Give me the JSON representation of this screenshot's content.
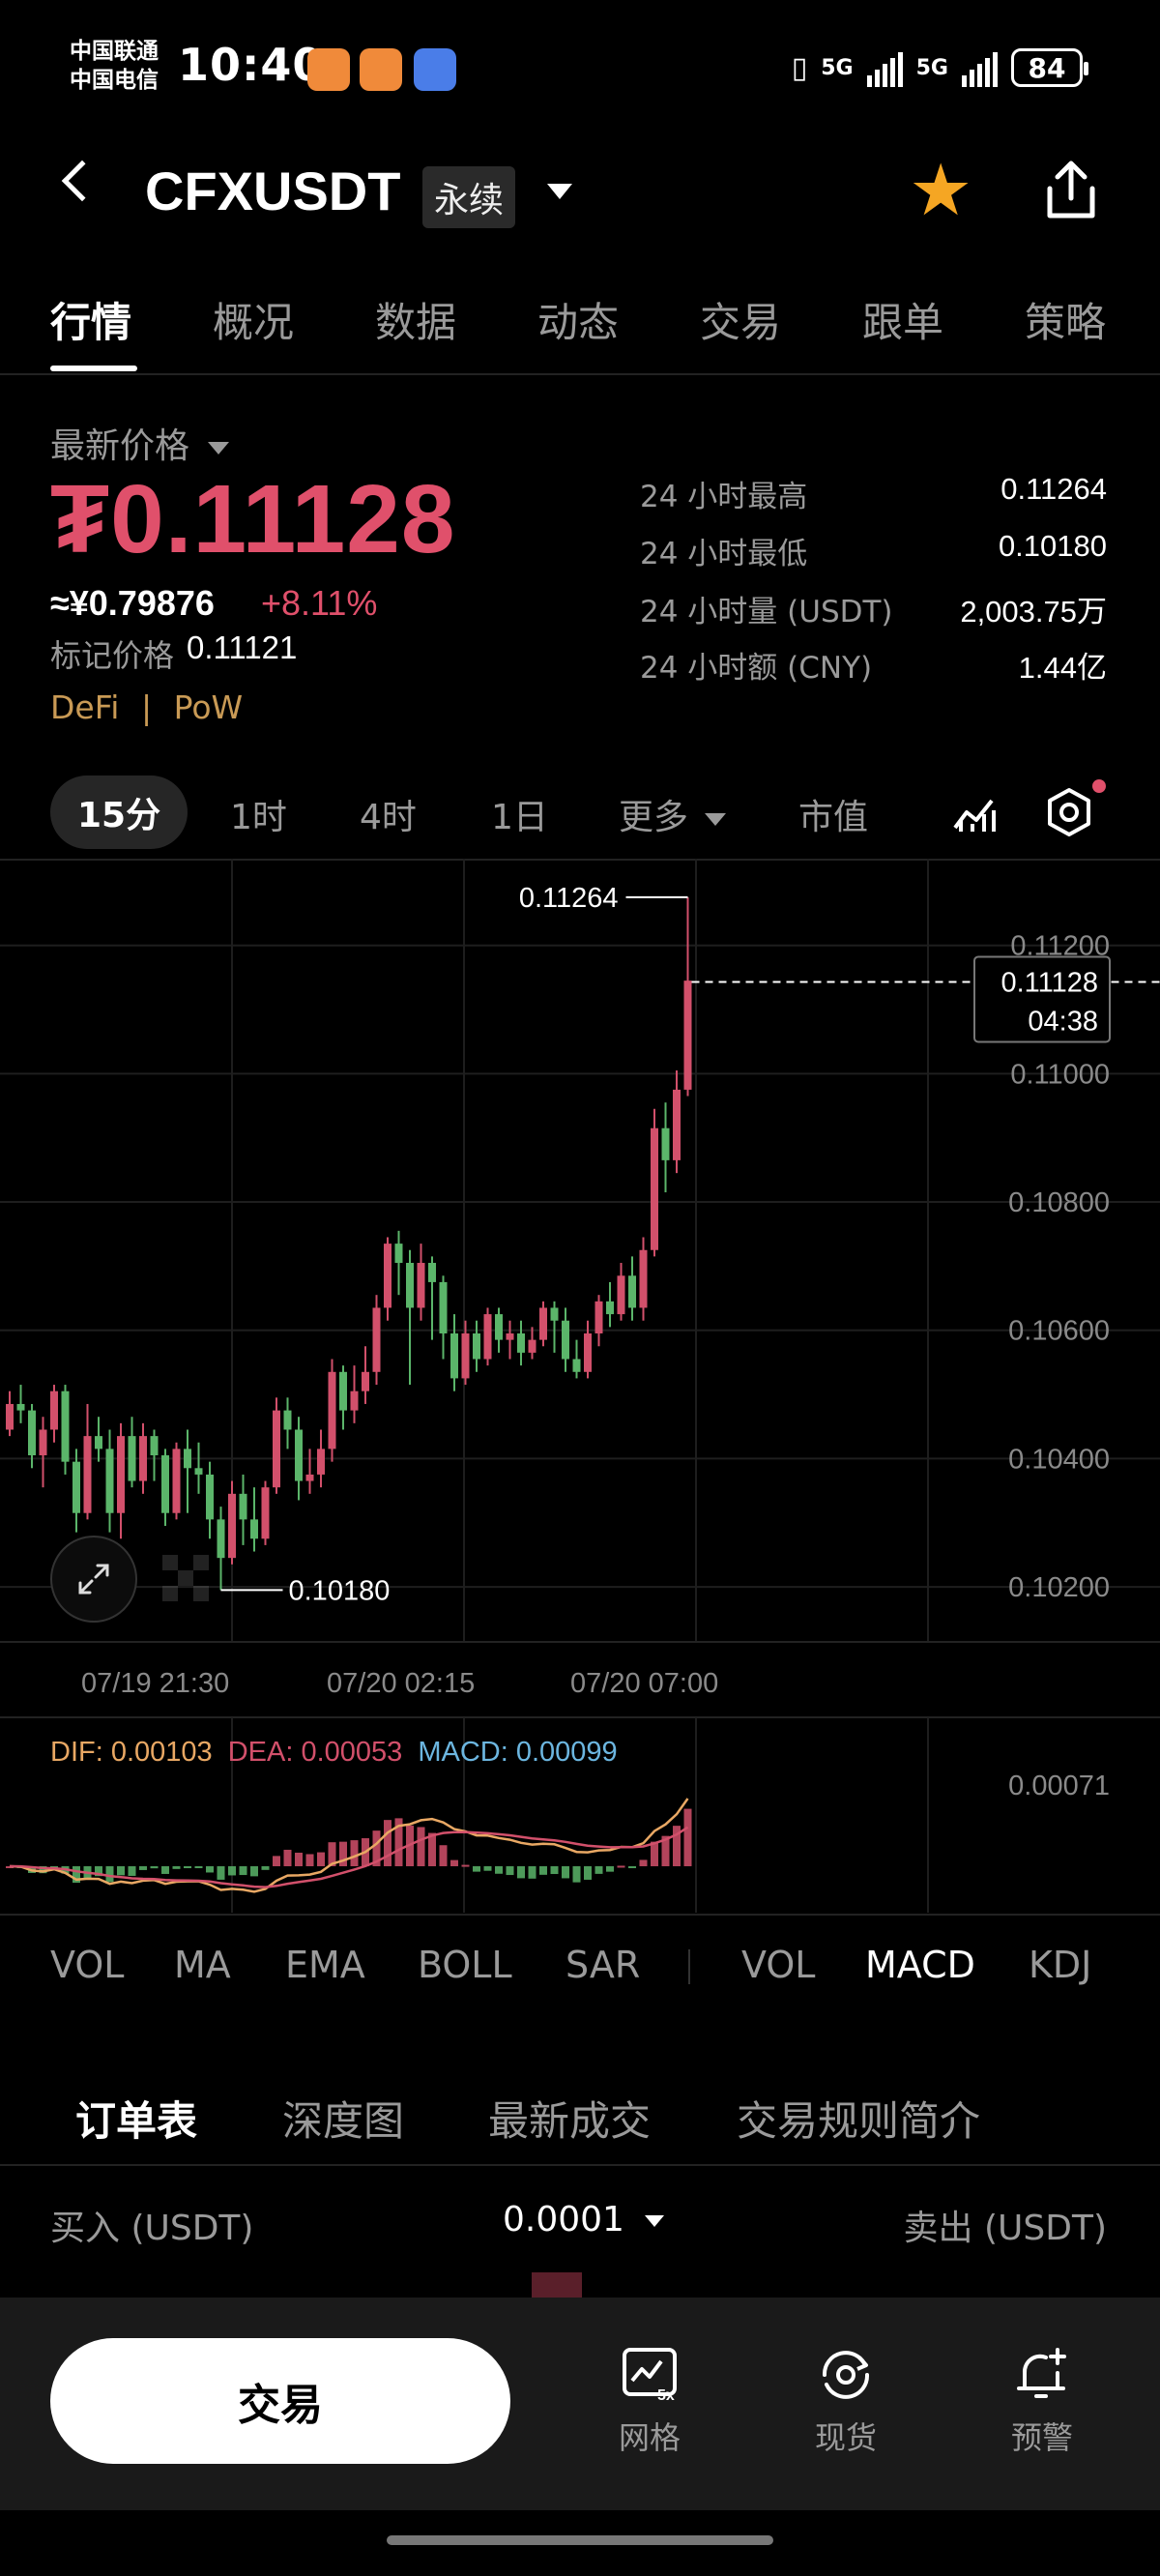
{
  "status_bar": {
    "carrier1": "中国联通",
    "carrier2": "中国电信",
    "time": "10:40",
    "net1": "5G",
    "net2": "5G",
    "battery": "84"
  },
  "header": {
    "pair": "CFXUSDT",
    "contract_type": "永续"
  },
  "tabs": [
    "行情",
    "概况",
    "数据",
    "动态",
    "交易",
    "跟单",
    "策略"
  ],
  "price": {
    "label": "最新价格",
    "last": "₮0.11128",
    "cny": "≈¥0.79876",
    "change": "+8.11%",
    "mark_label": "标记价格",
    "mark_value": "0.11121",
    "tag1": "DeFi",
    "tag_sep": "|",
    "tag2": "PoW"
  },
  "stats": [
    {
      "label": "24 小时最高",
      "value": "0.11264"
    },
    {
      "label": "24 小时最低",
      "value": "0.10180"
    },
    {
      "label": "24 小时量 (USDT)",
      "value": "2,003.75万"
    },
    {
      "label": "24 小时额 (CNY)",
      "value": "1.44亿"
    }
  ],
  "intervals": {
    "i15m": "15分",
    "i1h": "1时",
    "i4h": "4时",
    "i1d": "1日",
    "more": "更多",
    "mcap": "市值"
  },
  "colors": {
    "up": "#5bb56a",
    "down": "#d2506b",
    "accent_orange": "#f5a623"
  },
  "chart_data": {
    "type": "candlestick",
    "y_ticks": [
      "0.11200",
      "0.11000",
      "0.10800",
      "0.10600",
      "0.10400",
      "0.10200"
    ],
    "x_ticks": [
      "07/19 21:30",
      "07/20 02:15",
      "07/20 07:00"
    ],
    "high_label": "0.11264",
    "low_label": "0.10180",
    "current_price": "0.11128",
    "countdown": "04:38",
    "ylim": [
      0.1013,
      0.1129
    ],
    "candles": [
      [
        0.1043,
        0.1047,
        0.1049,
        0.1042
      ],
      [
        0.1047,
        0.1046,
        0.105,
        0.1044
      ],
      [
        0.1046,
        0.1039,
        0.1047,
        0.1037
      ],
      [
        0.1039,
        0.1043,
        0.1045,
        0.1034
      ],
      [
        0.1043,
        0.1049,
        0.105,
        0.1041
      ],
      [
        0.1049,
        0.1038,
        0.105,
        0.1036
      ],
      [
        0.1038,
        0.103,
        0.104,
        0.1027
      ],
      [
        0.103,
        0.1042,
        0.1047,
        0.1029
      ],
      [
        0.1042,
        0.104,
        0.1045,
        0.1038
      ],
      [
        0.104,
        0.103,
        0.1043,
        0.1027
      ],
      [
        0.103,
        0.1042,
        0.1044,
        0.1026
      ],
      [
        0.1042,
        0.1035,
        0.1045,
        0.1034
      ],
      [
        0.1035,
        0.1042,
        0.1044,
        0.1033
      ],
      [
        0.1042,
        0.1039,
        0.1043,
        0.1035
      ],
      [
        0.1039,
        0.103,
        0.104,
        0.1028
      ],
      [
        0.103,
        0.104,
        0.1041,
        0.1029
      ],
      [
        0.104,
        0.1037,
        0.1043,
        0.103
      ],
      [
        0.1037,
        0.1036,
        0.1041,
        0.1033
      ],
      [
        0.1036,
        0.1029,
        0.1038,
        0.1026
      ],
      [
        0.1029,
        0.1023,
        0.1031,
        0.1018
      ],
      [
        0.1023,
        0.1033,
        0.1035,
        0.1022
      ],
      [
        0.1033,
        0.1029,
        0.1036,
        0.1025
      ],
      [
        0.1029,
        0.1026,
        0.1034,
        0.1024
      ],
      [
        0.1026,
        0.1034,
        0.1035,
        0.1025
      ],
      [
        0.1034,
        0.1046,
        0.1048,
        0.1033
      ],
      [
        0.1046,
        0.1043,
        0.1048,
        0.104
      ],
      [
        0.1043,
        0.1035,
        0.1045,
        0.1032
      ],
      [
        0.1035,
        0.1036,
        0.104,
        0.1033
      ],
      [
        0.1036,
        0.104,
        0.1043,
        0.1034
      ],
      [
        0.104,
        0.1052,
        0.1054,
        0.1038
      ],
      [
        0.1052,
        0.1046,
        0.1053,
        0.1043
      ],
      [
        0.1046,
        0.1049,
        0.1053,
        0.1044
      ],
      [
        0.1049,
        0.1052,
        0.1056,
        0.1047
      ],
      [
        0.1052,
        0.1062,
        0.1064,
        0.105
      ],
      [
        0.1062,
        0.1072,
        0.1073,
        0.106
      ],
      [
        0.1072,
        0.1069,
        0.1074,
        0.1064
      ],
      [
        0.1069,
        0.1062,
        0.1071,
        0.105
      ],
      [
        0.1062,
        0.1069,
        0.1072,
        0.106
      ],
      [
        0.1069,
        0.1066,
        0.107,
        0.1057
      ],
      [
        0.1066,
        0.1058,
        0.1067,
        0.1054
      ],
      [
        0.1058,
        0.1051,
        0.1061,
        0.1049
      ],
      [
        0.1051,
        0.1058,
        0.106,
        0.105
      ],
      [
        0.1058,
        0.1054,
        0.106,
        0.1052
      ],
      [
        0.1054,
        0.1061,
        0.1062,
        0.1053
      ],
      [
        0.1061,
        0.1057,
        0.1062,
        0.1055
      ],
      [
        0.1057,
        0.1058,
        0.106,
        0.1054
      ],
      [
        0.1058,
        0.1055,
        0.106,
        0.1053
      ],
      [
        0.1055,
        0.1057,
        0.1059,
        0.1054
      ],
      [
        0.1057,
        0.1062,
        0.1063,
        0.1056
      ],
      [
        0.1062,
        0.106,
        0.1063,
        0.1055
      ],
      [
        0.106,
        0.1054,
        0.1062,
        0.1052
      ],
      [
        0.1054,
        0.1052,
        0.1057,
        0.1051
      ],
      [
        0.1052,
        0.1058,
        0.106,
        0.1051
      ],
      [
        0.1058,
        0.1063,
        0.1064,
        0.1056
      ],
      [
        0.1063,
        0.1061,
        0.1066,
        0.1059
      ],
      [
        0.1061,
        0.1067,
        0.1069,
        0.106
      ],
      [
        0.1067,
        0.1062,
        0.107,
        0.106
      ],
      [
        0.1062,
        0.1071,
        0.1073,
        0.106
      ],
      [
        0.1071,
        0.109,
        0.1093,
        0.107
      ],
      [
        0.109,
        0.1085,
        0.1094,
        0.108
      ],
      [
        0.1085,
        0.1096,
        0.1099,
        0.1083
      ],
      [
        0.1096,
        0.1113,
        0.1126,
        0.1095
      ]
    ]
  },
  "macd": {
    "dif_label": "DIF: 0.00103",
    "dea_label": "DEA: 0.00053",
    "macd_label": "MACD: 0.00099",
    "y_tick": "0.00071"
  },
  "indicators_main": [
    "VOL",
    "MA",
    "EMA",
    "BOLL",
    "SAR"
  ],
  "indicators_sub": [
    "VOL",
    "MACD",
    "KDJ"
  ],
  "order_tabs": [
    "订单表",
    "深度图",
    "最新成交",
    "交易规则简介"
  ],
  "order_header": {
    "buy": "买入 (USDT)",
    "precision": "0.0001",
    "sell": "卖出 (USDT)"
  },
  "bottom_nav": {
    "trade": "交易",
    "grid": "网格",
    "grid_badge": "5x",
    "spot": "现货",
    "alert": "预警"
  }
}
